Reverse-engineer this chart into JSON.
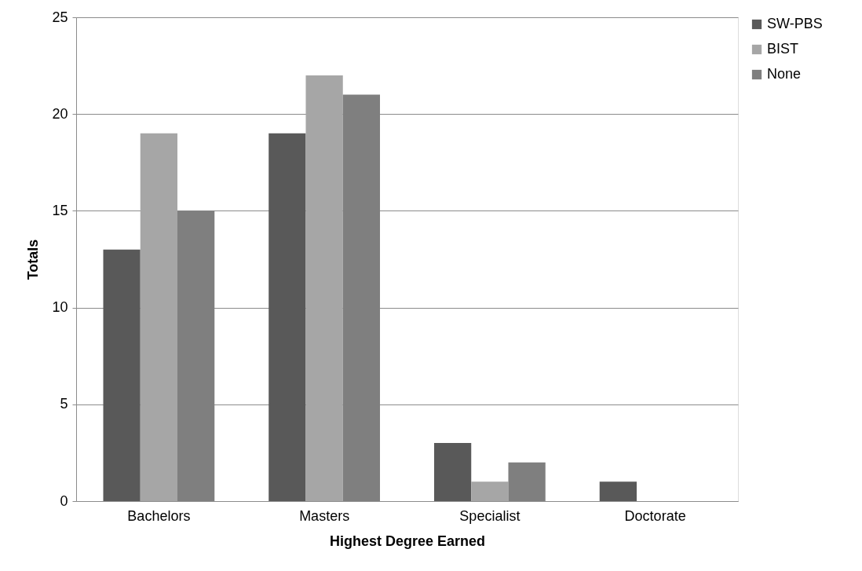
{
  "chart_data": {
    "type": "bar",
    "xlabel": "Highest Degree Earned",
    "ylabel": "Totals",
    "categories": [
      "Bachelors",
      "Masters",
      "Specialist",
      "Doctorate"
    ],
    "series": [
      {
        "name": "SW-PBS",
        "color": "#595959",
        "values": [
          13,
          19,
          3,
          1
        ]
      },
      {
        "name": "BIST",
        "color": "#a6a6a6",
        "values": [
          19,
          22,
          1,
          0
        ]
      },
      {
        "name": "None",
        "color": "#7f7f7f",
        "values": [
          15,
          21,
          2,
          0
        ]
      }
    ],
    "ylim": [
      0,
      25
    ],
    "yticks": [
      0,
      5,
      10,
      15,
      20,
      25
    ],
    "grid": "y",
    "legend": "right"
  }
}
